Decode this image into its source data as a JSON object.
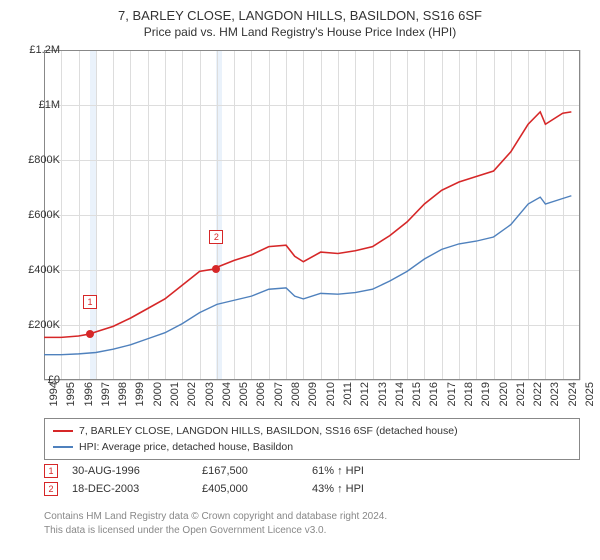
{
  "title": {
    "main": "7, BARLEY CLOSE, LANGDON HILLS, BASILDON, SS16 6SF",
    "sub": "Price paid vs. HM Land Registry's House Price Index (HPI)"
  },
  "chart": {
    "type": "line",
    "x_start_year": 1994,
    "x_end_year": 2025,
    "ylim": [
      0,
      1200000
    ],
    "ytick_step": 200000,
    "ytick_labels": [
      "£0",
      "£200K",
      "£400K",
      "£600K",
      "£800K",
      "£1M",
      "£1.2M"
    ],
    "grid_color": "#dddddd",
    "background_color": "#ffffff",
    "plot_border_color": "#888888",
    "shaded_bands": [
      {
        "x_start": 1996.66,
        "x_end": 1997.0,
        "color": "#eaf2fb"
      },
      {
        "x_start": 2003.97,
        "x_end": 2004.3,
        "color": "#eaf2fb"
      }
    ],
    "series": [
      {
        "name": "property",
        "label": "7, BARLEY CLOSE, LANGDON HILLS, BASILDON, SS16 6SF (detached house)",
        "color": "#d62728",
        "line_width": 1.6,
        "data": [
          [
            1994,
            155000
          ],
          [
            1995,
            155000
          ],
          [
            1996,
            160000
          ],
          [
            1996.66,
            167500
          ],
          [
            1997,
            175000
          ],
          [
            1998,
            195000
          ],
          [
            1999,
            225000
          ],
          [
            2000,
            260000
          ],
          [
            2001,
            295000
          ],
          [
            2002,
            345000
          ],
          [
            2003,
            395000
          ],
          [
            2003.97,
            405000
          ],
          [
            2004,
            410000
          ],
          [
            2005,
            435000
          ],
          [
            2006,
            455000
          ],
          [
            2007,
            485000
          ],
          [
            2008,
            490000
          ],
          [
            2008.5,
            450000
          ],
          [
            2009,
            430000
          ],
          [
            2010,
            465000
          ],
          [
            2011,
            460000
          ],
          [
            2012,
            470000
          ],
          [
            2013,
            485000
          ],
          [
            2014,
            525000
          ],
          [
            2015,
            575000
          ],
          [
            2016,
            640000
          ],
          [
            2017,
            690000
          ],
          [
            2018,
            720000
          ],
          [
            2019,
            740000
          ],
          [
            2020,
            760000
          ],
          [
            2021,
            830000
          ],
          [
            2022,
            930000
          ],
          [
            2022.7,
            975000
          ],
          [
            2023,
            930000
          ],
          [
            2024,
            970000
          ],
          [
            2024.5,
            975000
          ]
        ]
      },
      {
        "name": "hpi",
        "label": "HPI: Average price, detached house, Basildon",
        "color": "#4f81bd",
        "line_width": 1.4,
        "data": [
          [
            1994,
            92000
          ],
          [
            1995,
            92000
          ],
          [
            1996,
            95000
          ],
          [
            1997,
            100000
          ],
          [
            1998,
            112000
          ],
          [
            1999,
            128000
          ],
          [
            2000,
            150000
          ],
          [
            2001,
            172000
          ],
          [
            2002,
            205000
          ],
          [
            2003,
            245000
          ],
          [
            2004,
            275000
          ],
          [
            2005,
            290000
          ],
          [
            2006,
            305000
          ],
          [
            2007,
            330000
          ],
          [
            2008,
            335000
          ],
          [
            2008.5,
            305000
          ],
          [
            2009,
            295000
          ],
          [
            2010,
            315000
          ],
          [
            2011,
            312000
          ],
          [
            2012,
            318000
          ],
          [
            2013,
            330000
          ],
          [
            2014,
            360000
          ],
          [
            2015,
            395000
          ],
          [
            2016,
            440000
          ],
          [
            2017,
            475000
          ],
          [
            2018,
            495000
          ],
          [
            2019,
            505000
          ],
          [
            2020,
            520000
          ],
          [
            2021,
            565000
          ],
          [
            2022,
            640000
          ],
          [
            2022.7,
            665000
          ],
          [
            2023,
            640000
          ],
          [
            2024,
            660000
          ],
          [
            2024.5,
            670000
          ]
        ]
      }
    ],
    "markers": [
      {
        "x": 1996.66,
        "y": 167500,
        "color": "#d62728",
        "callout": "1",
        "callout_dy": -32
      },
      {
        "x": 2003.97,
        "y": 405000,
        "color": "#d62728",
        "callout": "2",
        "callout_dy": -32
      }
    ]
  },
  "legend": {
    "items": [
      {
        "color": "#d62728",
        "label": "7, BARLEY CLOSE, LANGDON HILLS, BASILDON, SS16 6SF (detached house)"
      },
      {
        "color": "#4f81bd",
        "label": "HPI: Average price, detached house, Basildon"
      }
    ]
  },
  "events": [
    {
      "n": "1",
      "date": "30-AUG-1996",
      "price": "£167,500",
      "pct": "61% ↑ HPI"
    },
    {
      "n": "2",
      "date": "18-DEC-2003",
      "price": "£405,000",
      "pct": "43% ↑ HPI"
    }
  ],
  "footer": {
    "line1": "Contains HM Land Registry data © Crown copyright and database right 2024.",
    "line2": "This data is licensed under the Open Government Licence v3.0."
  }
}
